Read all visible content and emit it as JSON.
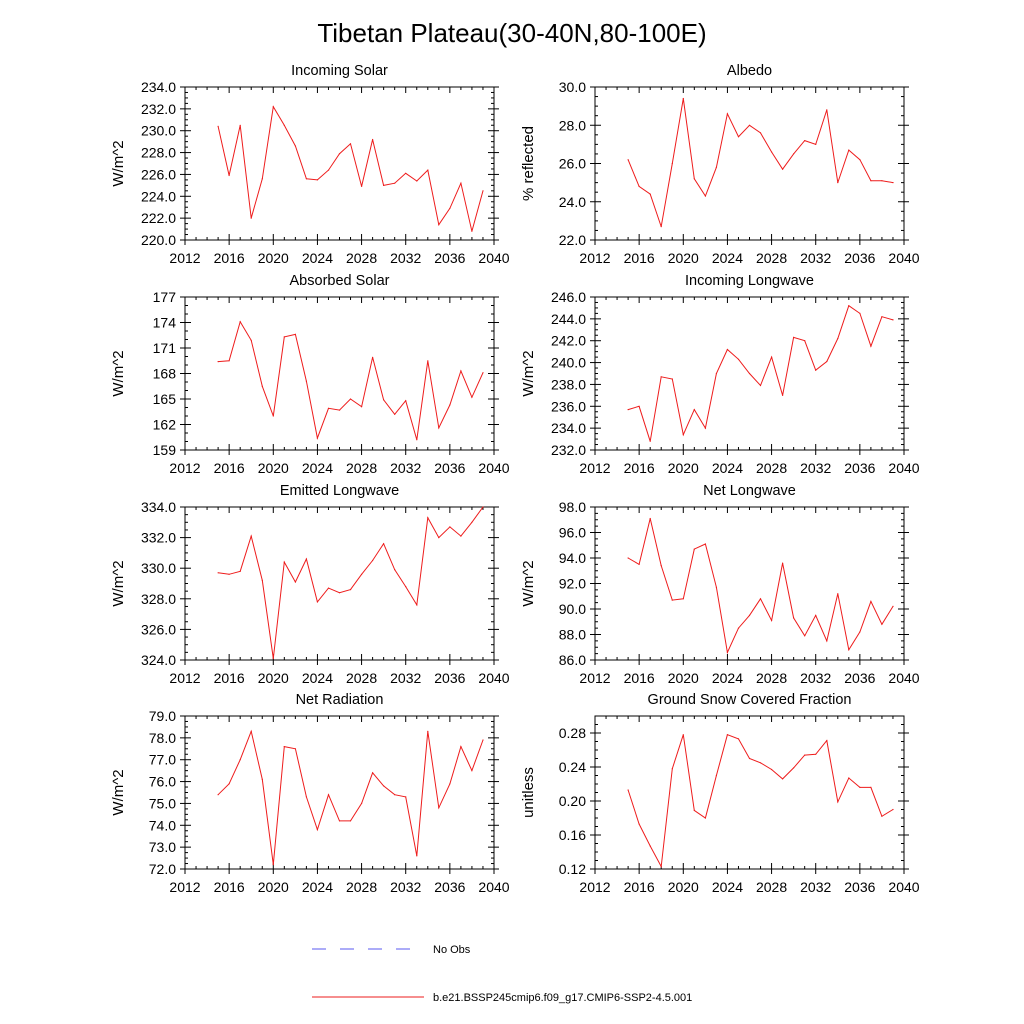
{
  "figure_title": "Tibetan Plateau(30-40N,80-100E)",
  "legend": [
    {
      "label": "No Obs",
      "color": "#5a5af0",
      "style": "dashed"
    },
    {
      "label": "b.e21.BSSP245cmip6.f09_g17.CMIP6-SSP2-4.5.001",
      "color": "#ee1c1c",
      "style": "solid"
    }
  ],
  "chart_data": [
    {
      "type": "line",
      "title": "Incoming Solar",
      "ylabel": "W/m^2",
      "xlabel": "",
      "xlim": [
        2012,
        2040
      ],
      "ylim": [
        220,
        234
      ],
      "xticks": [
        2012,
        2016,
        2020,
        2024,
        2028,
        2032,
        2036,
        2040
      ],
      "xtick_labels": [
        "2012",
        "2016",
        "2020",
        "2024",
        "2028",
        "2032",
        "2036",
        "2040"
      ],
      "yticks": [
        220,
        222,
        224,
        226,
        228,
        230,
        232,
        234
      ],
      "ytick_labels": [
        "220.0",
        "222.0",
        "224.0",
        "226.0",
        "228.0",
        "230.0",
        "232.0",
        "234.0"
      ],
      "yminor": 4,
      "color": "#ee1c1c",
      "series": [
        {
          "name": "b.e21.BSSP245cmip6.f09_g17.CMIP6-SSP2-4.5.001",
          "x": [
            2015,
            2016,
            2017,
            2018,
            2019,
            2020,
            2021,
            2022,
            2023,
            2024,
            2025,
            2026,
            2027,
            2028,
            2029,
            2030,
            2031,
            2032,
            2033,
            2034,
            2035,
            2036,
            2037,
            2038,
            2039
          ],
          "values": [
            230.4,
            225.9,
            230.5,
            222.0,
            225.6,
            232.2,
            230.5,
            228.6,
            225.6,
            225.5,
            226.4,
            227.9,
            228.8,
            224.9,
            229.2,
            225.0,
            225.2,
            226.1,
            225.4,
            226.4,
            221.4,
            222.9,
            225.2,
            220.8,
            224.5
          ]
        }
      ]
    },
    {
      "type": "line",
      "title": "Albedo",
      "ylabel": "% reflected",
      "xlabel": "",
      "xlim": [
        2012,
        2040
      ],
      "ylim": [
        22,
        30
      ],
      "xticks": [
        2012,
        2016,
        2020,
        2024,
        2028,
        2032,
        2036,
        2040
      ],
      "xtick_labels": [
        "2012",
        "2016",
        "2020",
        "2024",
        "2028",
        "2032",
        "2036",
        "2040"
      ],
      "yticks": [
        22,
        24,
        26,
        28,
        30
      ],
      "ytick_labels": [
        "22.0",
        "24.0",
        "26.0",
        "28.0",
        "30.0"
      ],
      "yminor": 4,
      "color": "#ee1c1c",
      "series": [
        {
          "name": "b.e21.BSSP245cmip6.f09_g17.CMIP6-SSP2-4.5.001",
          "x": [
            2015,
            2016,
            2017,
            2018,
            2019,
            2020,
            2021,
            2022,
            2023,
            2024,
            2025,
            2026,
            2027,
            2028,
            2029,
            2030,
            2031,
            2032,
            2033,
            2034,
            2035,
            2036,
            2037,
            2038,
            2039
          ],
          "values": [
            26.2,
            24.8,
            24.4,
            22.7,
            26.0,
            29.4,
            25.2,
            24.3,
            25.8,
            28.6,
            27.4,
            28.0,
            27.6,
            26.6,
            25.7,
            26.5,
            27.2,
            27.0,
            28.8,
            25.0,
            26.7,
            26.2,
            25.1,
            25.1,
            25.0
          ]
        }
      ]
    },
    {
      "type": "line",
      "title": "Absorbed Solar",
      "ylabel": "W/m^2",
      "xlabel": "",
      "xlim": [
        2012,
        2040
      ],
      "ylim": [
        159,
        177
      ],
      "xticks": [
        2012,
        2016,
        2020,
        2024,
        2028,
        2032,
        2036,
        2040
      ],
      "xtick_labels": [
        "2012",
        "2016",
        "2020",
        "2024",
        "2028",
        "2032",
        "2036",
        "2040"
      ],
      "yticks": [
        159,
        162,
        165,
        168,
        171,
        174,
        177
      ],
      "ytick_labels": [
        "159",
        "162",
        "165",
        "168",
        "171",
        "174",
        "177"
      ],
      "yminor": 3,
      "color": "#ee1c1c",
      "series": [
        {
          "name": "b.e21.BSSP245cmip6.f09_g17.CMIP6-SSP2-4.5.001",
          "x": [
            2015,
            2016,
            2017,
            2018,
            2019,
            2020,
            2021,
            2022,
            2023,
            2024,
            2025,
            2026,
            2027,
            2028,
            2029,
            2030,
            2031,
            2032,
            2033,
            2034,
            2035,
            2036,
            2037,
            2038,
            2039
          ],
          "values": [
            169.4,
            169.5,
            174.1,
            171.9,
            166.5,
            163.0,
            172.3,
            172.6,
            167.1,
            160.4,
            163.9,
            163.7,
            165.0,
            164.1,
            169.9,
            164.9,
            163.2,
            164.8,
            160.2,
            169.5,
            161.6,
            164.3,
            168.3,
            165.2,
            168.1
          ]
        }
      ]
    },
    {
      "type": "line",
      "title": "Incoming Longwave",
      "ylabel": "W/m^2",
      "xlabel": "",
      "xlim": [
        2012,
        2040
      ],
      "ylim": [
        232,
        246
      ],
      "xticks": [
        2012,
        2016,
        2020,
        2024,
        2028,
        2032,
        2036,
        2040
      ],
      "xtick_labels": [
        "2012",
        "2016",
        "2020",
        "2024",
        "2028",
        "2032",
        "2036",
        "2040"
      ],
      "yticks": [
        232,
        234,
        236,
        238,
        240,
        242,
        244,
        246
      ],
      "ytick_labels": [
        "232.0",
        "234.0",
        "236.0",
        "238.0",
        "240.0",
        "242.0",
        "244.0",
        "246.0"
      ],
      "yminor": 4,
      "color": "#ee1c1c",
      "series": [
        {
          "name": "b.e21.BSSP245cmip6.f09_g17.CMIP6-SSP2-4.5.001",
          "x": [
            2015,
            2016,
            2017,
            2018,
            2019,
            2020,
            2021,
            2022,
            2023,
            2024,
            2025,
            2026,
            2027,
            2028,
            2029,
            2030,
            2031,
            2032,
            2033,
            2034,
            2035,
            2036,
            2037,
            2038,
            2039
          ],
          "values": [
            235.7,
            236.0,
            232.8,
            238.7,
            238.5,
            233.4,
            235.7,
            234.0,
            239.0,
            241.2,
            240.3,
            239.0,
            237.9,
            240.5,
            237.0,
            242.3,
            242.0,
            239.3,
            240.1,
            242.2,
            245.2,
            244.5,
            241.5,
            244.2,
            243.9
          ]
        }
      ]
    },
    {
      "type": "line",
      "title": "Emitted Longwave",
      "ylabel": "W/m^2",
      "xlabel": "",
      "xlim": [
        2012,
        2040
      ],
      "ylim": [
        324,
        334
      ],
      "xticks": [
        2012,
        2016,
        2020,
        2024,
        2028,
        2032,
        2036,
        2040
      ],
      "xtick_labels": [
        "2012",
        "2016",
        "2020",
        "2024",
        "2028",
        "2032",
        "2036",
        "2040"
      ],
      "yticks": [
        324,
        326,
        328,
        330,
        332,
        334
      ],
      "ytick_labels": [
        "324.0",
        "326.0",
        "328.0",
        "330.0",
        "332.0",
        "334.0"
      ],
      "yminor": 4,
      "color": "#ee1c1c",
      "series": [
        {
          "name": "b.e21.BSSP245cmip6.f09_g17.CMIP6-SSP2-4.5.001",
          "x": [
            2015,
            2016,
            2017,
            2018,
            2019,
            2020,
            2021,
            2022,
            2023,
            2024,
            2025,
            2026,
            2027,
            2028,
            2029,
            2030,
            2031,
            2032,
            2033,
            2034,
            2035,
            2036,
            2037,
            2038,
            2039
          ],
          "values": [
            329.7,
            329.6,
            329.8,
            332.1,
            329.2,
            324.1,
            330.4,
            329.1,
            330.6,
            327.8,
            328.7,
            328.4,
            328.6,
            329.6,
            330.5,
            331.6,
            329.9,
            328.8,
            327.6,
            333.3,
            332.0,
            332.7,
            332.1,
            333.0,
            334.0
          ]
        }
      ]
    },
    {
      "type": "line",
      "title": "Net Longwave",
      "ylabel": "W/m^2",
      "xlabel": "",
      "xlim": [
        2012,
        2040
      ],
      "ylim": [
        86,
        98
      ],
      "xticks": [
        2012,
        2016,
        2020,
        2024,
        2028,
        2032,
        2036,
        2040
      ],
      "xtick_labels": [
        "2012",
        "2016",
        "2020",
        "2024",
        "2028",
        "2032",
        "2036",
        "2040"
      ],
      "yticks": [
        86,
        88,
        90,
        92,
        94,
        96,
        98
      ],
      "ytick_labels": [
        "86.0",
        "88.0",
        "90.0",
        "92.0",
        "94.0",
        "96.0",
        "98.0"
      ],
      "yminor": 4,
      "color": "#ee1c1c",
      "series": [
        {
          "name": "b.e21.BSSP245cmip6.f09_g17.CMIP6-SSP2-4.5.001",
          "x": [
            2015,
            2016,
            2017,
            2018,
            2019,
            2020,
            2021,
            2022,
            2023,
            2024,
            2025,
            2026,
            2027,
            2028,
            2029,
            2030,
            2031,
            2032,
            2033,
            2034,
            2035,
            2036,
            2037,
            2038,
            2039
          ],
          "values": [
            94.0,
            93.5,
            97.1,
            93.4,
            90.7,
            90.8,
            94.7,
            95.1,
            91.7,
            86.6,
            88.5,
            89.5,
            90.8,
            89.1,
            93.6,
            89.3,
            87.9,
            89.5,
            87.5,
            91.2,
            86.8,
            88.2,
            90.6,
            88.8,
            90.2
          ]
        }
      ]
    },
    {
      "type": "line",
      "title": "Net Radiation",
      "ylabel": "W/m^2",
      "xlabel": "",
      "xlim": [
        2012,
        2040
      ],
      "ylim": [
        72,
        79
      ],
      "xticks": [
        2012,
        2016,
        2020,
        2024,
        2028,
        2032,
        2036,
        2040
      ],
      "xtick_labels": [
        "2012",
        "2016",
        "2020",
        "2024",
        "2028",
        "2032",
        "2036",
        "2040"
      ],
      "yticks": [
        72,
        73,
        74,
        75,
        76,
        77,
        78,
        79
      ],
      "ytick_labels": [
        "72.0",
        "73.0",
        "74.0",
        "75.0",
        "76.0",
        "77.0",
        "78.0",
        "79.0"
      ],
      "yminor": 4,
      "color": "#ee1c1c",
      "series": [
        {
          "name": "b.e21.BSSP245cmip6.f09_g17.CMIP6-SSP2-4.5.001",
          "x": [
            2015,
            2016,
            2017,
            2018,
            2019,
            2020,
            2021,
            2022,
            2023,
            2024,
            2025,
            2026,
            2027,
            2028,
            2029,
            2030,
            2031,
            2032,
            2033,
            2034,
            2035,
            2036,
            2037,
            2038,
            2039
          ],
          "values": [
            75.4,
            75.9,
            77.0,
            78.3,
            76.1,
            72.2,
            77.6,
            77.5,
            75.3,
            73.8,
            75.4,
            74.2,
            74.2,
            75.0,
            76.4,
            75.8,
            75.4,
            75.3,
            72.6,
            78.3,
            74.8,
            75.9,
            77.6,
            76.5,
            77.9
          ]
        }
      ]
    },
    {
      "type": "line",
      "title": "Ground Snow Covered Fraction",
      "ylabel": "unitless",
      "xlabel": "",
      "xlim": [
        2012,
        2040
      ],
      "ylim": [
        0.12,
        0.3
      ],
      "xticks": [
        2012,
        2016,
        2020,
        2024,
        2028,
        2032,
        2036,
        2040
      ],
      "xtick_labels": [
        "2012",
        "2016",
        "2020",
        "2024",
        "2028",
        "2032",
        "2036",
        "2040"
      ],
      "yticks": [
        0.12,
        0.16,
        0.2,
        0.24,
        0.28
      ],
      "ytick_labels": [
        "0.12",
        "0.16",
        "0.20",
        "0.24",
        "0.28"
      ],
      "yminor": 4,
      "color": "#ee1c1c",
      "series": [
        {
          "name": "b.e21.BSSP245cmip6.f09_g17.CMIP6-SSP2-4.5.001",
          "x": [
            2015,
            2016,
            2017,
            2018,
            2019,
            2020,
            2021,
            2022,
            2023,
            2024,
            2025,
            2026,
            2027,
            2028,
            2029,
            2030,
            2031,
            2032,
            2033,
            2034,
            2035,
            2036,
            2037,
            2038,
            2039
          ],
          "values": [
            0.213,
            0.173,
            0.147,
            0.123,
            0.238,
            0.278,
            0.189,
            0.18,
            0.23,
            0.278,
            0.273,
            0.25,
            0.245,
            0.237,
            0.226,
            0.239,
            0.254,
            0.255,
            0.271,
            0.199,
            0.227,
            0.216,
            0.216,
            0.182,
            0.19
          ]
        }
      ]
    }
  ]
}
